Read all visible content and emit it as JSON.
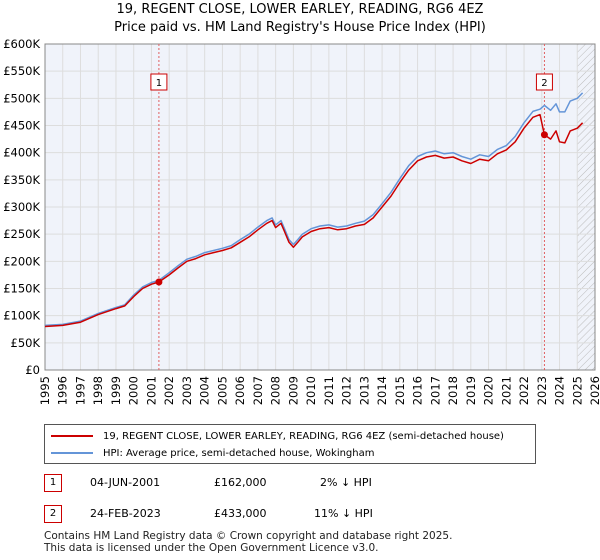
{
  "title_line1": "19, REGENT CLOSE, LOWER EARLEY, READING, RG6 4EZ",
  "title_line2": "Price paid vs. HM Land Registry's House Price Index (HPI)",
  "chart_data": {
    "type": "line",
    "title": "19, REGENT CLOSE, LOWER EARLEY, READING, RG6 4EZ — Price paid vs. HM Land Registry's House Price Index (HPI)",
    "xlabel": "",
    "ylabel": "",
    "xlim": [
      1995,
      2026
    ],
    "ylim": [
      0,
      600000
    ],
    "x_ticks": [
      1995,
      1996,
      1997,
      1998,
      1999,
      2000,
      2001,
      2002,
      2003,
      2004,
      2005,
      2006,
      2007,
      2008,
      2009,
      2010,
      2011,
      2012,
      2013,
      2014,
      2015,
      2016,
      2017,
      2018,
      2019,
      2020,
      2021,
      2022,
      2023,
      2024,
      2025,
      2026
    ],
    "y_ticks": [
      {
        "value": 0,
        "label": "£0"
      },
      {
        "value": 50000,
        "label": "£50K"
      },
      {
        "value": 100000,
        "label": "£100K"
      },
      {
        "value": 150000,
        "label": "£150K"
      },
      {
        "value": 200000,
        "label": "£200K"
      },
      {
        "value": 250000,
        "label": "£250K"
      },
      {
        "value": 300000,
        "label": "£300K"
      },
      {
        "value": 350000,
        "label": "£350K"
      },
      {
        "value": 400000,
        "label": "£400K"
      },
      {
        "value": 450000,
        "label": "£450K"
      },
      {
        "value": 500000,
        "label": "£500K"
      },
      {
        "value": 550000,
        "label": "£550K"
      },
      {
        "value": 600000,
        "label": "£600K"
      }
    ],
    "grid": true,
    "future_hatch_from": 2025.0,
    "colors": {
      "price": "#cc0000",
      "hpi": "#6495d8",
      "marker_line": "#e06060",
      "grid": "#dddddd",
      "plot_bg": "#f0f3fa",
      "hatch": "#bbbbbb"
    },
    "series": [
      {
        "name": "19, REGENT CLOSE, LOWER EARLEY, READING, RG6 4EZ (semi-detached house)",
        "x": [
          1995.0,
          1996.0,
          1997.0,
          1998.0,
          1999.0,
          1999.5,
          2000.0,
          2000.5,
          2001.0,
          2001.42,
          2002.0,
          2002.5,
          2003.0,
          2003.5,
          2004.0,
          2004.5,
          2005.0,
          2005.5,
          2006.0,
          2006.5,
          2007.0,
          2007.5,
          2007.8,
          2008.0,
          2008.3,
          2008.5,
          2008.75,
          2009.0,
          2009.25,
          2009.5,
          2010.0,
          2010.5,
          2011.0,
          2011.5,
          2012.0,
          2012.5,
          2013.0,
          2013.5,
          2014.0,
          2014.5,
          2015.0,
          2015.5,
          2016.0,
          2016.5,
          2017.0,
          2017.5,
          2018.0,
          2018.5,
          2019.0,
          2019.5,
          2020.0,
          2020.5,
          2021.0,
          2021.5,
          2022.0,
          2022.5,
          2022.9,
          2023.15,
          2023.5,
          2023.8,
          2024.0,
          2024.3,
          2024.6,
          2025.0,
          2025.3
        ],
        "y": [
          80000,
          82000,
          88000,
          102000,
          113000,
          118000,
          135000,
          150000,
          158000,
          162000,
          175000,
          188000,
          200000,
          205000,
          212000,
          216000,
          220000,
          225000,
          235000,
          245000,
          258000,
          270000,
          275000,
          262000,
          270000,
          255000,
          235000,
          226000,
          235000,
          245000,
          255000,
          260000,
          262000,
          258000,
          260000,
          265000,
          268000,
          280000,
          300000,
          320000,
          345000,
          368000,
          385000,
          392000,
          395000,
          390000,
          392000,
          385000,
          380000,
          388000,
          385000,
          398000,
          405000,
          420000,
          445000,
          465000,
          470000,
          433000,
          425000,
          440000,
          420000,
          418000,
          440000,
          445000,
          455000
        ]
      },
      {
        "name": "HPI: Average price, semi-detached house, Wokingham",
        "x": [
          1995.0,
          1996.0,
          1997.0,
          1998.0,
          1999.0,
          1999.5,
          2000.0,
          2000.5,
          2001.0,
          2001.42,
          2002.0,
          2002.5,
          2003.0,
          2003.5,
          2004.0,
          2004.5,
          2005.0,
          2005.5,
          2006.0,
          2006.5,
          2007.0,
          2007.5,
          2007.8,
          2008.0,
          2008.3,
          2008.5,
          2008.75,
          2009.0,
          2009.25,
          2009.5,
          2010.0,
          2010.5,
          2011.0,
          2011.5,
          2012.0,
          2012.5,
          2013.0,
          2013.5,
          2014.0,
          2014.5,
          2015.0,
          2015.5,
          2016.0,
          2016.5,
          2017.0,
          2017.5,
          2018.0,
          2018.5,
          2019.0,
          2019.5,
          2020.0,
          2020.5,
          2021.0,
          2021.5,
          2022.0,
          2022.5,
          2022.9,
          2023.15,
          2023.5,
          2023.8,
          2024.0,
          2024.3,
          2024.6,
          2025.0,
          2025.3
        ],
        "y": [
          82000,
          84000,
          90000,
          104000,
          115000,
          120000,
          138000,
          153000,
          161000,
          165000,
          179000,
          192000,
          204000,
          209000,
          216000,
          220000,
          224000,
          229000,
          240000,
          250000,
          263000,
          275000,
          280000,
          267000,
          275000,
          260000,
          240000,
          231000,
          240000,
          250000,
          260000,
          265000,
          267000,
          263000,
          265000,
          270000,
          274000,
          286000,
          306000,
          327000,
          352000,
          376000,
          393000,
          400000,
          403000,
          398000,
          400000,
          393000,
          388000,
          396000,
          393000,
          406000,
          413000,
          430000,
          455000,
          476000,
          480000,
          487000,
          478000,
          490000,
          475000,
          475000,
          495000,
          500000,
          510000
        ]
      }
    ],
    "markers": [
      {
        "label": "1",
        "x": 2001.42,
        "y": 162000
      },
      {
        "label": "2",
        "x": 2023.15,
        "y": 433000
      }
    ]
  },
  "legend": {
    "price_label": "19, REGENT CLOSE, LOWER EARLEY, READING, RG6 4EZ (semi-detached house)",
    "hpi_label": "HPI: Average price, semi-detached house, Wokingham"
  },
  "transactions": [
    {
      "num": "1",
      "date": "04-JUN-2001",
      "price": "£162,000",
      "hpi_diff": "2% ↓ HPI"
    },
    {
      "num": "2",
      "date": "24-FEB-2023",
      "price": "£433,000",
      "hpi_diff": "11% ↓ HPI"
    }
  ],
  "footer": {
    "line1": "Contains HM Land Registry data © Crown copyright and database right 2025.",
    "line2": "This data is licensed under the Open Government Licence v3.0."
  }
}
